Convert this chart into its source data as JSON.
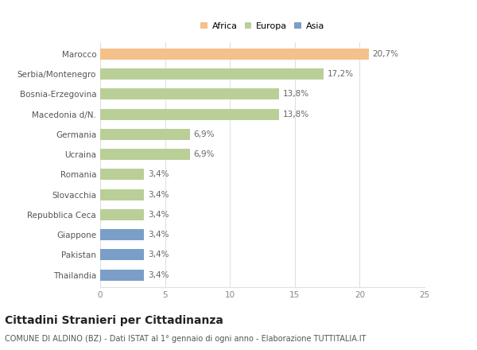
{
  "categories": [
    "Marocco",
    "Serbia/Montenegro",
    "Bosnia-Erzegovina",
    "Macedonia d/N.",
    "Germania",
    "Ucraina",
    "Romania",
    "Slovacchia",
    "Repubblica Ceca",
    "Giappone",
    "Pakistan",
    "Thailandia"
  ],
  "values": [
    20.7,
    17.2,
    13.8,
    13.8,
    6.9,
    6.9,
    3.4,
    3.4,
    3.4,
    3.4,
    3.4,
    3.4
  ],
  "labels": [
    "20,7%",
    "17,2%",
    "13,8%",
    "13,8%",
    "6,9%",
    "6,9%",
    "3,4%",
    "3,4%",
    "3,4%",
    "3,4%",
    "3,4%",
    "3,4%"
  ],
  "colors": [
    "#F5C08A",
    "#BACF97",
    "#BACF97",
    "#BACF97",
    "#BACF97",
    "#BACF97",
    "#BACF97",
    "#BACF97",
    "#BACF97",
    "#7A9EC8",
    "#7A9EC8",
    "#7A9EC8"
  ],
  "legend": [
    {
      "label": "Africa",
      "color": "#F5C08A"
    },
    {
      "label": "Europa",
      "color": "#BACF97"
    },
    {
      "label": "Asia",
      "color": "#7A9EC8"
    }
  ],
  "xlim": [
    0,
    25
  ],
  "xticks": [
    0,
    5,
    10,
    15,
    20,
    25
  ],
  "title": "Cittadini Stranieri per Cittadinanza",
  "subtitle": "COMUNE DI ALDINO (BZ) - Dati ISTAT al 1° gennaio di ogni anno - Elaborazione TUTTITALIA.IT",
  "background_color": "#ffffff",
  "grid_color": "#e0e0e0",
  "bar_height": 0.55,
  "label_fontsize": 7.5,
  "tick_fontsize": 7.5,
  "title_fontsize": 10,
  "subtitle_fontsize": 7
}
